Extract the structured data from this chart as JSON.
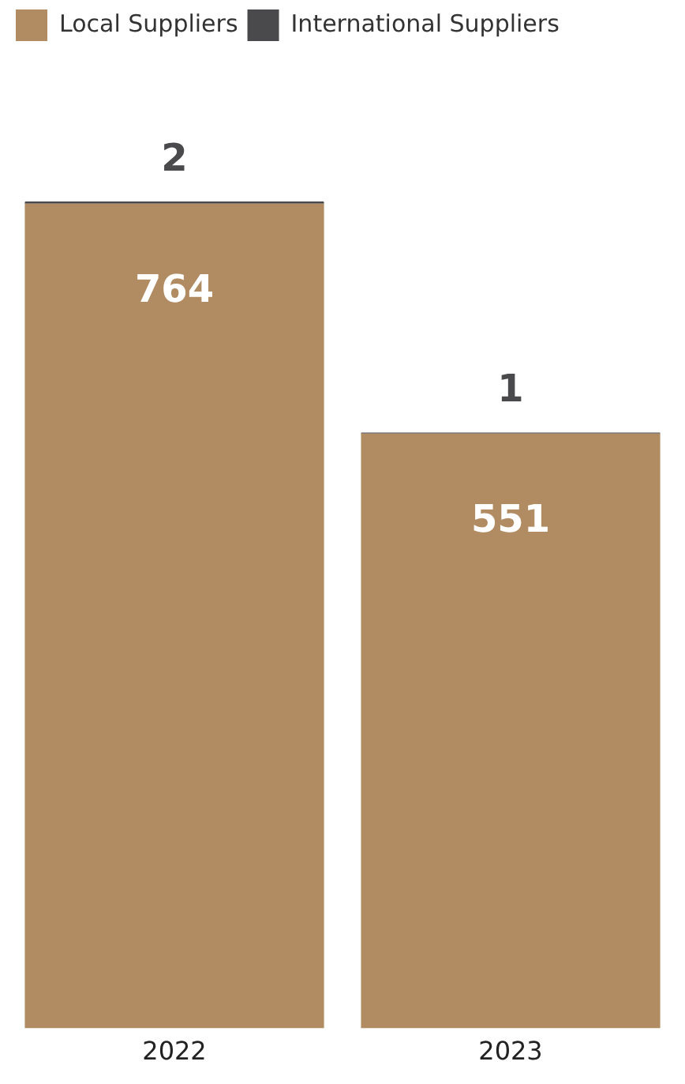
{
  "chart_data": {
    "type": "bar",
    "stacked": true,
    "categories": [
      "2022",
      "2023"
    ],
    "series": [
      {
        "name": "Local Suppliers",
        "color": "#b18b61",
        "values": [
          764,
          551
        ]
      },
      {
        "name": "International Suppliers",
        "color": "#4a4a4c",
        "values": [
          2,
          1
        ]
      }
    ],
    "data_labels": true,
    "legend": "top left",
    "grid": false
  }
}
